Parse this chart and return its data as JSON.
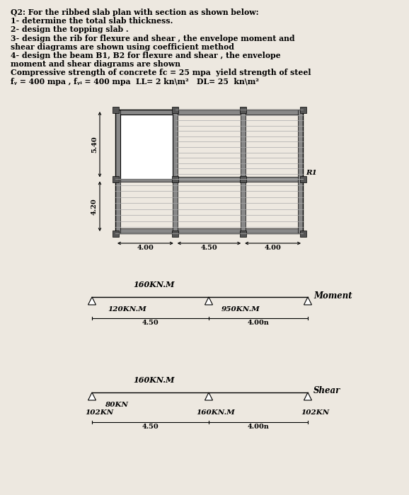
{
  "title_lines": [
    "Q2: For the ribbed slab plan with section as shown below:",
    "1- determine the total slab thickness.",
    "2- design the topping slab .",
    "3- design the rib for flexure and shear , the envelope moment and",
    "shear diagrams are shown using coefficient method",
    "4- design the beam B1, B2 for flexure and shear , the envelope",
    "moment and shear diagrams are shown",
    "Compressive strength of concrete fc = 25 mpa  yield strength of steel",
    "fᵧ = 400 mpa , fᵧᵢ = 400 mpa  LL= 2 kn\\m²   DL= 25  kn\\m²"
  ],
  "bg_color": "#ede8e0",
  "plan_R1": "R1",
  "moment_label": "Moment",
  "shear_label": "Shear",
  "moment_top": "160KN.M",
  "moment_left": "120KN.M",
  "moment_mid": "950KN.M",
  "moment_span1": "4.50",
  "moment_span2": "4.00n",
  "shear_top": "160KN.M",
  "shear_left_val": "80KN",
  "shear_left_support": "102KN",
  "shear_right_support": "102KN",
  "shear_mid": "160KN.M",
  "shear_span1": "4.50",
  "shear_span2": "4.00n"
}
